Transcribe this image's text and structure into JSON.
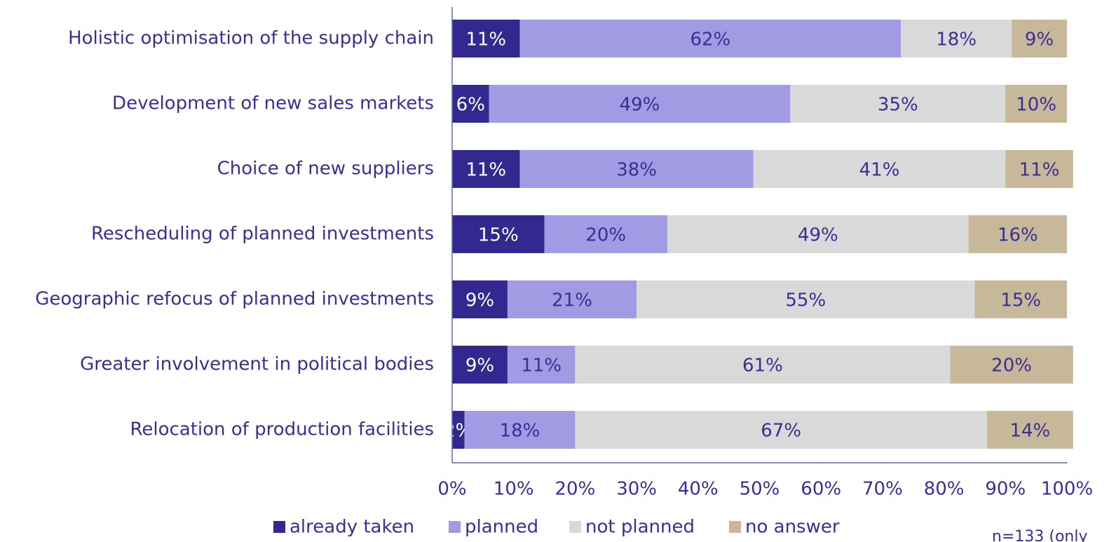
{
  "chart_data": {
    "type": "stacked_barh",
    "categories": [
      "Holistic optimisation of the supply chain",
      "Development of new sales markets",
      "Choice of new suppliers",
      "Rescheduling of planned investments",
      "Geographic refocus of planned investments",
      "Greater involvement in political bodies",
      "Relocation of production facilities"
    ],
    "series": [
      {
        "name": "already taken",
        "color": "#33288f",
        "values": [
          11,
          6,
          11,
          15,
          9,
          9,
          2
        ],
        "value_labels": [
          "11%",
          "6%",
          "11%",
          "15%",
          "9%",
          "9%",
          "2%"
        ]
      },
      {
        "name": "planned",
        "color": "#a09be3",
        "values": [
          62,
          49,
          38,
          20,
          21,
          11,
          18
        ],
        "value_labels": [
          "62%",
          "49%",
          "38%",
          "20%",
          "21%",
          "11%",
          "18%"
        ]
      },
      {
        "name": "not planned",
        "color": "#d9d9d9",
        "values": [
          18,
          35,
          41,
          49,
          55,
          61,
          67
        ],
        "value_labels": [
          "18%",
          "35%",
          "41%",
          "49%",
          "55%",
          "61%",
          "67%"
        ]
      },
      {
        "name": "no answer",
        "color": "#c8b89a",
        "values": [
          9,
          10,
          11,
          16,
          15,
          20,
          14
        ],
        "value_labels": [
          "9%",
          "10%",
          "11%",
          "16%",
          "15%",
          "20%",
          "14%"
        ]
      }
    ],
    "xlim": [
      0,
      100
    ],
    "xticks": [
      {
        "value": 0,
        "label": "0%"
      },
      {
        "value": 10,
        "label": "10%"
      },
      {
        "value": 20,
        "label": "20%"
      },
      {
        "value": 30,
        "label": "30%"
      },
      {
        "value": 40,
        "label": "40%"
      },
      {
        "value": 50,
        "label": "50%"
      },
      {
        "value": 60,
        "label": "60%"
      },
      {
        "value": 70,
        "label": "70%"
      },
      {
        "value": 80,
        "label": "80%"
      },
      {
        "value": 90,
        "label": "90%"
      },
      {
        "value": 100,
        "label": "100%"
      }
    ],
    "legend": "bottom",
    "note": "n=133 (only"
  }
}
